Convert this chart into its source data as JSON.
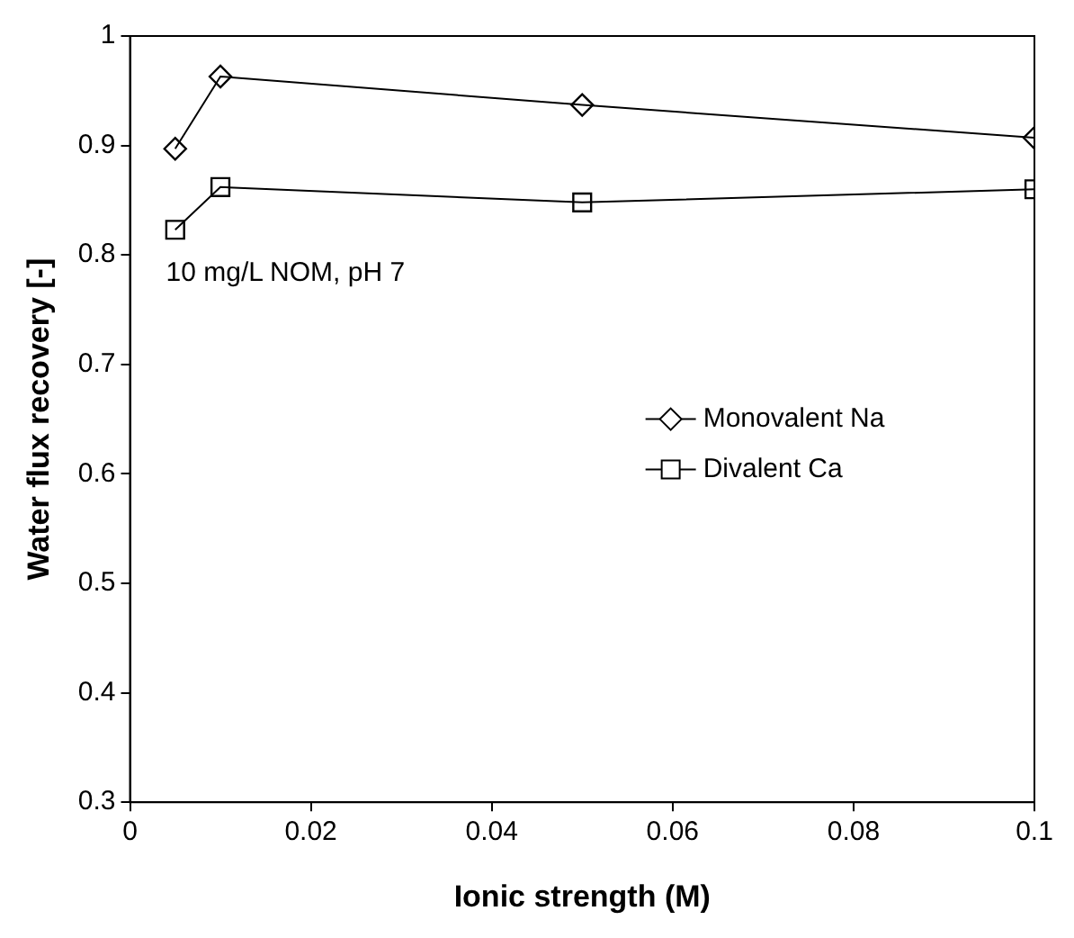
{
  "chart_data": {
    "type": "line",
    "xlabel": "Ionic strength (M)",
    "ylabel": "Water flux recovery [-]",
    "x": [
      0.005,
      0.01,
      0.05,
      0.1
    ],
    "series": [
      {
        "name": "Monovalent Na",
        "color": "#000000",
        "marker": "diamond",
        "values": [
          0.897,
          0.963,
          0.937,
          0.907
        ]
      },
      {
        "name": "Divalent Ca",
        "color": "#000000",
        "marker": "square",
        "values": [
          0.823,
          0.862,
          0.848,
          0.86
        ]
      }
    ],
    "xlim": [
      0,
      0.1
    ],
    "xticks": [
      0,
      0.02,
      0.04,
      0.06,
      0.08,
      0.1
    ],
    "ylim": [
      0.3,
      1
    ],
    "yticks": [
      0.3,
      0.4,
      0.5,
      0.6,
      0.7,
      0.8,
      0.9,
      1
    ],
    "annotations": [
      "10 mg/L NOM, pH 7"
    ],
    "legend": "right",
    "grid": false,
    "line_style": "solid"
  }
}
